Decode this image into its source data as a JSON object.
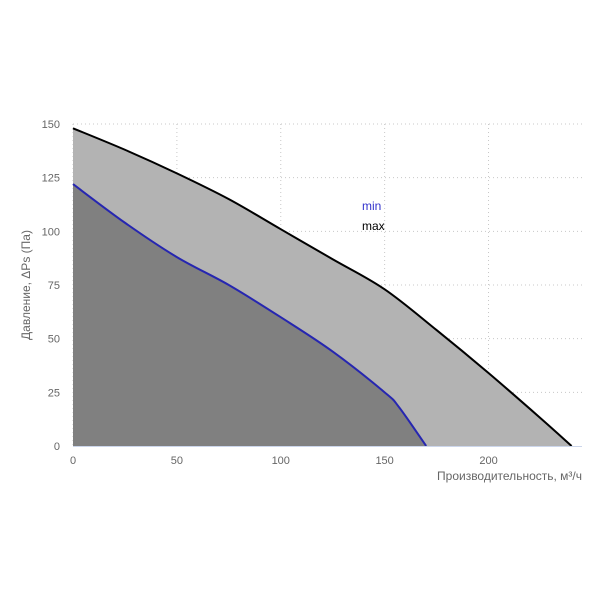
{
  "chart_data": {
    "type": "area",
    "xlabel": "Производительность, м³/ч",
    "ylabel": "Давление, ΔPs (Па)",
    "xlim": [
      0,
      245
    ],
    "ylim": [
      0,
      150
    ],
    "xticks": [
      0,
      50,
      100,
      150,
      200
    ],
    "yticks": [
      0,
      25,
      50,
      75,
      100,
      125,
      150
    ],
    "grid": true,
    "legend_placement": "top-center",
    "series": [
      {
        "name": "max",
        "color": "#000000",
        "fill": "#b3b3b3",
        "x": [
          0,
          25,
          50,
          75,
          100,
          125,
          150,
          175,
          200,
          225,
          240
        ],
        "y": [
          148,
          138,
          127,
          115,
          101,
          87,
          73,
          54,
          34,
          13,
          0
        ]
      },
      {
        "name": "min",
        "color": "#2626b0",
        "fill": "#808080",
        "x": [
          0,
          25,
          50,
          75,
          100,
          125,
          150,
          157,
          170
        ],
        "y": [
          122,
          104,
          88,
          75,
          60,
          44,
          25,
          18,
          0
        ]
      }
    ]
  }
}
